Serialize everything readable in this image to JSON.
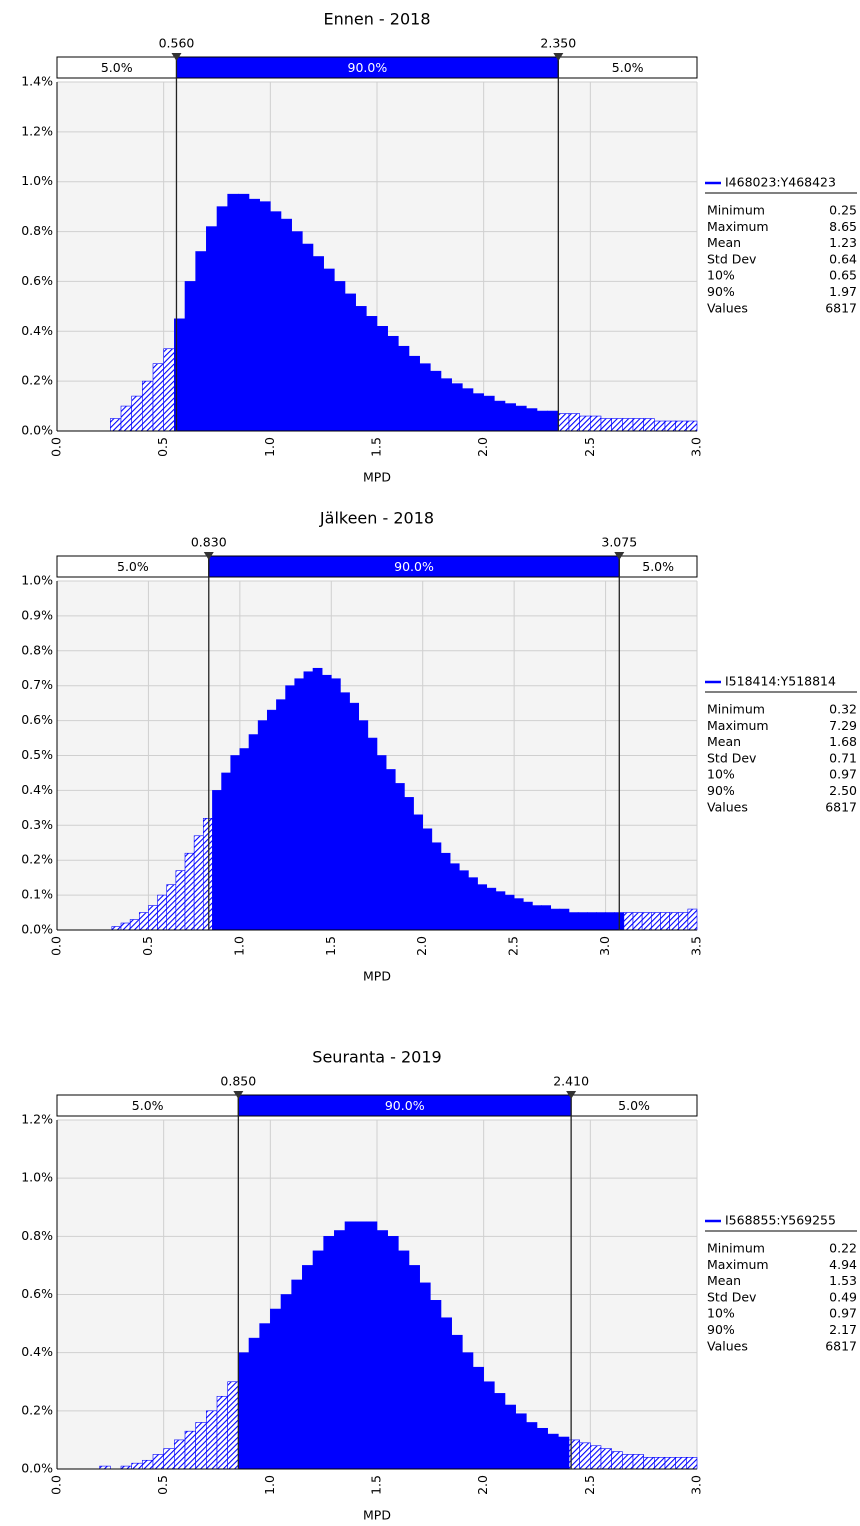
{
  "chart_data": [
    {
      "type": "histogram",
      "title": "Ennen - 2018",
      "xlabel": "MPD",
      "color": "#0000ff",
      "grid": true,
      "bins": [
        0,
        0.05,
        0.1,
        0.15,
        0.2,
        0.25,
        0.3,
        0.35,
        0.4,
        0.45,
        0.5,
        0.55,
        0.6,
        0.65,
        0.7,
        0.75,
        0.8,
        0.85,
        0.9,
        0.95,
        1,
        1.05,
        1.1,
        1.15,
        1.2,
        1.25,
        1.3,
        1.35,
        1.4,
        1.45,
        1.5,
        1.55,
        1.6,
        1.65,
        1.7,
        1.75,
        1.8,
        1.85,
        1.9,
        1.95,
        2,
        2.05,
        2.1,
        2.15,
        2.2,
        2.25,
        2.3,
        2.35,
        2.4,
        2.45,
        2.5,
        2.55,
        2.6,
        2.65,
        2.7,
        2.75,
        2.8,
        2.85,
        2.9,
        2.95,
        3
      ],
      "values": [
        0,
        0,
        0,
        0,
        0,
        0.05,
        0.1,
        0.14,
        0.2,
        0.27,
        0.33,
        0.45,
        0.6,
        0.72,
        0.82,
        0.9,
        0.95,
        0.95,
        0.93,
        0.92,
        0.88,
        0.85,
        0.8,
        0.75,
        0.7,
        0.65,
        0.6,
        0.55,
        0.5,
        0.46,
        0.42,
        0.38,
        0.34,
        0.3,
        0.27,
        0.24,
        0.21,
        0.19,
        0.17,
        0.15,
        0.14,
        0.12,
        0.11,
        0.1,
        0.09,
        0.08,
        0.08,
        0.07,
        0.07,
        0.06,
        0.06,
        0.05,
        0.05,
        0.05,
        0.05,
        0.05,
        0.04,
        0.04,
        0.04,
        0.04
      ],
      "xlim": [
        0,
        3
      ],
      "xticks": [
        {
          "value": 0,
          "label": "0.0"
        },
        0.5,
        {
          "value": 1,
          "label": "1.0"
        },
        1.5,
        {
          "value": 2,
          "label": "2.0"
        },
        2.5,
        {
          "value": 3,
          "label": "3.0"
        }
      ],
      "ylim": [
        0,
        1.4
      ],
      "yticks": [
        {
          "value": 0,
          "label": "0.0%"
        },
        {
          "value": 0.2,
          "label": "0.2%"
        },
        {
          "value": 0.4,
          "label": "0.4%"
        },
        {
          "value": 0.6,
          "label": "0.6%"
        },
        {
          "value": 0.8,
          "label": "0.8%"
        },
        {
          "value": 1,
          "label": "1.0%"
        },
        {
          "value": 1.2,
          "label": "1.2%"
        },
        {
          "value": 1.4,
          "label": "1.4%"
        }
      ],
      "delimiters": [
        {
          "value": 0.56,
          "label": "0.560"
        },
        {
          "value": 2.35,
          "label": "2.350"
        }
      ],
      "regions": [
        {
          "value": 5,
          "label": "5.0%"
        },
        {
          "value": 90,
          "label": "90.0%"
        },
        {
          "value": 5,
          "label": "5.0%"
        }
      ],
      "series_name": "I468023:Y468423",
      "stats": [
        [
          "Minimum",
          "0.25"
        ],
        [
          "Maximum",
          "8.65"
        ],
        [
          "Mean",
          "1.23"
        ],
        [
          "Std Dev",
          "0.64"
        ],
        [
          "10%",
          "0.65"
        ],
        [
          "90%",
          "1.97"
        ],
        [
          "Values",
          "6817"
        ]
      ]
    },
    {
      "type": "histogram",
      "title": "Jälkeen - 2018",
      "xlabel": "MPD",
      "color": "#0000ff",
      "grid": true,
      "bins": [
        0,
        0.05,
        0.1,
        0.15,
        0.2,
        0.25,
        0.3,
        0.35,
        0.4,
        0.45,
        0.5,
        0.55,
        0.6,
        0.65,
        0.7,
        0.75,
        0.8,
        0.85,
        0.9,
        0.95,
        1,
        1.05,
        1.1,
        1.15,
        1.2,
        1.25,
        1.3,
        1.35,
        1.4,
        1.45,
        1.5,
        1.55,
        1.6,
        1.65,
        1.7,
        1.75,
        1.8,
        1.85,
        1.9,
        1.95,
        2,
        2.05,
        2.1,
        2.15,
        2.2,
        2.25,
        2.3,
        2.35,
        2.4,
        2.45,
        2.5,
        2.55,
        2.6,
        2.65,
        2.7,
        2.75,
        2.8,
        2.85,
        2.9,
        2.95,
        3,
        3.05,
        3.1,
        3.15,
        3.2,
        3.25,
        3.3,
        3.35,
        3.4,
        3.45,
        3.5
      ],
      "values": [
        0,
        0,
        0,
        0,
        0,
        0,
        0.01,
        0.02,
        0.03,
        0.05,
        0.07,
        0.1,
        0.13,
        0.17,
        0.22,
        0.27,
        0.32,
        0.4,
        0.45,
        0.5,
        0.52,
        0.56,
        0.6,
        0.63,
        0.66,
        0.7,
        0.72,
        0.74,
        0.75,
        0.73,
        0.72,
        0.68,
        0.65,
        0.6,
        0.55,
        0.5,
        0.46,
        0.42,
        0.38,
        0.33,
        0.29,
        0.25,
        0.22,
        0.19,
        0.17,
        0.15,
        0.13,
        0.12,
        0.11,
        0.1,
        0.09,
        0.08,
        0.07,
        0.07,
        0.06,
        0.06,
        0.05,
        0.05,
        0.05,
        0.05,
        0.05,
        0.05,
        0.05,
        0.05,
        0.05,
        0.05,
        0.05,
        0.05,
        0.05,
        0.06
      ],
      "xlim": [
        0,
        3.5
      ],
      "xticks": [
        {
          "value": 0,
          "label": "0.0"
        },
        0.5,
        {
          "value": 1,
          "label": "1.0"
        },
        1.5,
        {
          "value": 2,
          "label": "2.0"
        },
        2.5,
        {
          "value": 3,
          "label": "3.0"
        },
        3.5
      ],
      "ylim": [
        0,
        1
      ],
      "yticks": [
        {
          "value": 0,
          "label": "0.0%"
        },
        {
          "value": 0.1,
          "label": "0.1%"
        },
        {
          "value": 0.2,
          "label": "0.2%"
        },
        {
          "value": 0.3,
          "label": "0.3%"
        },
        {
          "value": 0.4,
          "label": "0.4%"
        },
        {
          "value": 0.5,
          "label": "0.5%"
        },
        {
          "value": 0.6,
          "label": "0.6%"
        },
        {
          "value": 0.7,
          "label": "0.7%"
        },
        {
          "value": 0.8,
          "label": "0.8%"
        },
        {
          "value": 0.9,
          "label": "0.9%"
        },
        {
          "value": 1,
          "label": "1.0%"
        }
      ],
      "delimiters": [
        {
          "value": 0.83,
          "label": "0.830"
        },
        {
          "value": 3.075,
          "label": "3.075"
        }
      ],
      "regions": [
        {
          "value": 5,
          "label": "5.0%"
        },
        {
          "value": 90,
          "label": "90.0%"
        },
        {
          "value": 5,
          "label": "5.0%"
        }
      ],
      "series_name": "I518414:Y518814",
      "stats": [
        [
          "Minimum",
          "0.32"
        ],
        [
          "Maximum",
          "7.29"
        ],
        [
          "Mean",
          "1.68"
        ],
        [
          "Std Dev",
          "0.71"
        ],
        [
          "10%",
          "0.97"
        ],
        [
          "90%",
          "2.50"
        ],
        [
          "Values",
          "6817"
        ]
      ]
    },
    {
      "type": "histogram",
      "title": "Seuranta - 2019",
      "xlabel": "MPD",
      "color": "#0000ff",
      "grid": true,
      "bins": [
        0,
        0.05,
        0.1,
        0.15,
        0.2,
        0.25,
        0.3,
        0.35,
        0.4,
        0.45,
        0.5,
        0.55,
        0.6,
        0.65,
        0.7,
        0.75,
        0.8,
        0.85,
        0.9,
        0.95,
        1,
        1.05,
        1.1,
        1.15,
        1.2,
        1.25,
        1.3,
        1.35,
        1.4,
        1.45,
        1.5,
        1.55,
        1.6,
        1.65,
        1.7,
        1.75,
        1.8,
        1.85,
        1.9,
        1.95,
        2,
        2.05,
        2.1,
        2.15,
        2.2,
        2.25,
        2.3,
        2.35,
        2.4,
        2.45,
        2.5,
        2.55,
        2.6,
        2.65,
        2.7,
        2.75,
        2.8,
        2.85,
        2.9,
        2.95,
        3
      ],
      "values": [
        0,
        0,
        0,
        0,
        0.01,
        0,
        0.01,
        0.02,
        0.03,
        0.05,
        0.07,
        0.1,
        0.13,
        0.16,
        0.2,
        0.25,
        0.3,
        0.4,
        0.45,
        0.5,
        0.55,
        0.6,
        0.65,
        0.7,
        0.75,
        0.8,
        0.82,
        0.85,
        0.85,
        0.85,
        0.82,
        0.8,
        0.75,
        0.7,
        0.64,
        0.58,
        0.52,
        0.46,
        0.4,
        0.35,
        0.3,
        0.26,
        0.22,
        0.19,
        0.16,
        0.14,
        0.12,
        0.11,
        0.1,
        0.09,
        0.08,
        0.07,
        0.06,
        0.05,
        0.05,
        0.04,
        0.04,
        0.04,
        0.04,
        0.04
      ],
      "xlim": [
        0,
        3
      ],
      "xticks": [
        {
          "value": 0,
          "label": "0.0"
        },
        0.5,
        {
          "value": 1,
          "label": "1.0"
        },
        1.5,
        {
          "value": 2,
          "label": "2.0"
        },
        2.5,
        {
          "value": 3,
          "label": "3.0"
        }
      ],
      "ylim": [
        0,
        1.2
      ],
      "yticks": [
        {
          "value": 0,
          "label": "0.0%"
        },
        {
          "value": 0.2,
          "label": "0.2%"
        },
        {
          "value": 0.4,
          "label": "0.4%"
        },
        {
          "value": 0.6,
          "label": "0.6%"
        },
        {
          "value": 0.8,
          "label": "0.8%"
        },
        {
          "value": 1,
          "label": "1.0%"
        },
        {
          "value": 1.2,
          "label": "1.2%"
        }
      ],
      "delimiters": [
        {
          "value": 0.85,
          "label": "0.850"
        },
        {
          "value": 2.41,
          "label": "2.410"
        }
      ],
      "regions": [
        {
          "value": 5,
          "label": "5.0%"
        },
        {
          "value": 90,
          "label": "90.0%"
        },
        {
          "value": 5,
          "label": "5.0%"
        }
      ],
      "series_name": "I568855:Y569255",
      "stats": [
        [
          "Minimum",
          "0.22"
        ],
        [
          "Maximum",
          "4.94"
        ],
        [
          "Mean",
          "1.53"
        ],
        [
          "Std Dev",
          "0.49"
        ],
        [
          "10%",
          "0.97"
        ],
        [
          "90%",
          "2.17"
        ],
        [
          "Values",
          "6817"
        ]
      ]
    }
  ]
}
